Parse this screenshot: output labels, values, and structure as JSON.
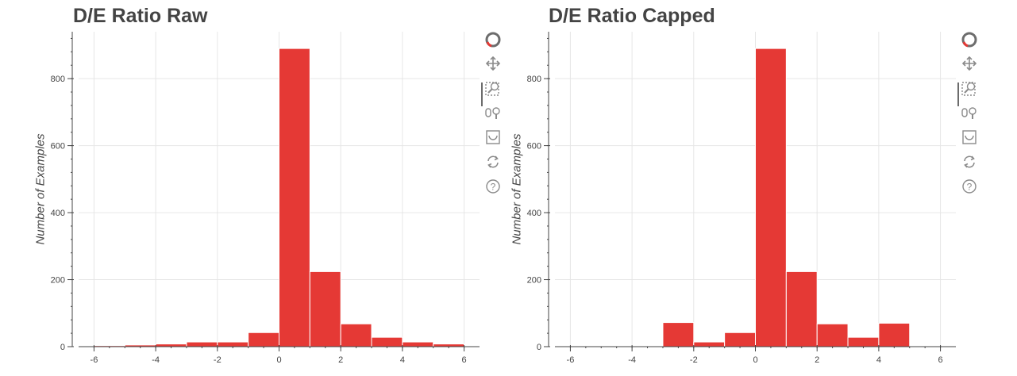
{
  "colors": {
    "bar_fill": "#e53935",
    "bar_stroke": "#ffffff",
    "grid": "#e6e6e6",
    "axis": "#444444",
    "text": "#444444",
    "tool_icon": "#8a8a8a"
  },
  "toolbar": {
    "logo_icon": "bokeh-logo-icon",
    "tools": [
      "pan-icon",
      "box-zoom-icon",
      "wheel-zoom-icon",
      "save-icon",
      "reset-icon",
      "help-icon"
    ]
  },
  "chart_data": [
    {
      "type": "bar",
      "title": "D/E Ratio Raw",
      "xlabel": "",
      "ylabel": "Number of Examples",
      "xlim": [
        -6.5,
        6.5
      ],
      "ylim": [
        0,
        940
      ],
      "xticks": [
        -6,
        -4,
        -2,
        0,
        2,
        4,
        6
      ],
      "xtick_labels": [
        "-6",
        "-4",
        "-2",
        "0",
        "2",
        "4",
        "6"
      ],
      "yticks": [
        0,
        200,
        400,
        600,
        800
      ],
      "ytick_labels": [
        "0",
        "200",
        "400",
        "600",
        "800"
      ],
      "grid": true,
      "bins": [
        {
          "left": -6,
          "right": -5,
          "value": 3
        },
        {
          "left": -5,
          "right": -4,
          "value": 5
        },
        {
          "left": -4,
          "right": -3,
          "value": 8
        },
        {
          "left": -3,
          "right": -2,
          "value": 14
        },
        {
          "left": -2,
          "right": -1,
          "value": 14
        },
        {
          "left": -1,
          "right": 0,
          "value": 42
        },
        {
          "left": 0,
          "right": 1,
          "value": 890
        },
        {
          "left": 1,
          "right": 2,
          "value": 224
        },
        {
          "left": 2,
          "right": 3,
          "value": 68
        },
        {
          "left": 3,
          "right": 4,
          "value": 28
        },
        {
          "left": 4,
          "right": 5,
          "value": 14
        },
        {
          "left": 5,
          "right": 6,
          "value": 8
        }
      ]
    },
    {
      "type": "bar",
      "title": "D/E Ratio Capped",
      "xlabel": "",
      "ylabel": "Number of Examples",
      "xlim": [
        -6.5,
        6.5
      ],
      "ylim": [
        0,
        940
      ],
      "xticks": [
        -6,
        -4,
        -2,
        0,
        2,
        4,
        6
      ],
      "xtick_labels": [
        "-6",
        "-4",
        "-2",
        "0",
        "2",
        "4",
        "6"
      ],
      "yticks": [
        0,
        200,
        400,
        600,
        800
      ],
      "ytick_labels": [
        "0",
        "200",
        "400",
        "600",
        "800"
      ],
      "grid": true,
      "bins": [
        {
          "left": -3,
          "right": -2,
          "value": 72
        },
        {
          "left": -2,
          "right": -1,
          "value": 14
        },
        {
          "left": -1,
          "right": 0,
          "value": 42
        },
        {
          "left": 0,
          "right": 1,
          "value": 890
        },
        {
          "left": 1,
          "right": 2,
          "value": 224
        },
        {
          "left": 2,
          "right": 3,
          "value": 68
        },
        {
          "left": 3,
          "right": 4,
          "value": 28
        },
        {
          "left": 4,
          "right": 5,
          "value": 70
        }
      ]
    }
  ]
}
